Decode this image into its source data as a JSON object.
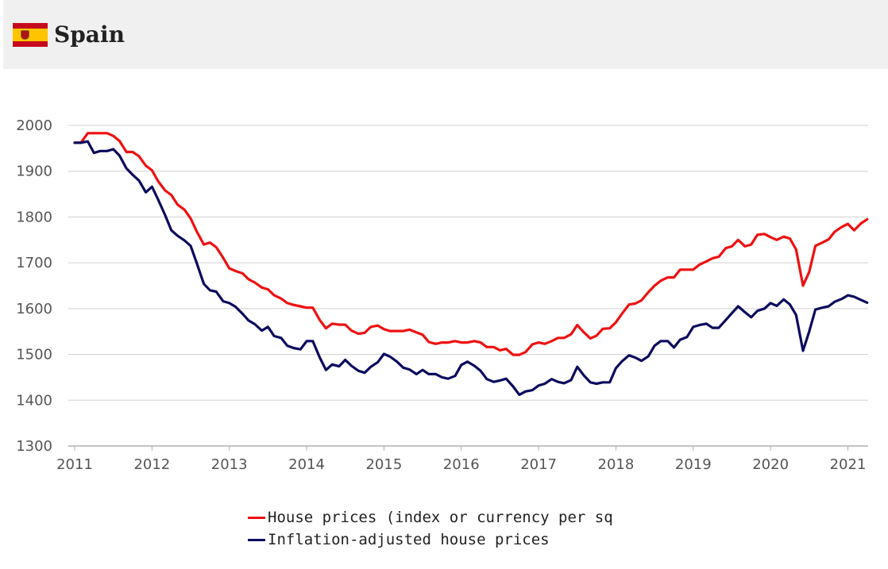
{
  "header": {
    "country": "Spain",
    "flag_icon": "spain-flag-icon"
  },
  "chart_data": {
    "type": "line",
    "xlim": [
      2011,
      2021.25
    ],
    "ylim": [
      1300,
      2000
    ],
    "y_ticks": [
      1300,
      1400,
      1500,
      1600,
      1700,
      1800,
      1900,
      2000
    ],
    "x_ticks": [
      2011,
      2012,
      2013,
      2014,
      2015,
      2016,
      2017,
      2018,
      2019,
      2020,
      2021
    ],
    "grid": "horizontal",
    "legend_position": "bottom",
    "series": [
      {
        "name": "House prices (index or currency per sq",
        "color": "#ee1111",
        "points": [
          [
            2011.0,
            1962
          ],
          [
            2011.08,
            1962
          ],
          [
            2011.17,
            1983
          ],
          [
            2011.25,
            1983
          ],
          [
            2011.33,
            1983
          ],
          [
            2011.42,
            1983
          ],
          [
            2011.5,
            1977
          ],
          [
            2011.58,
            1966
          ],
          [
            2011.67,
            1942
          ],
          [
            2011.75,
            1942
          ],
          [
            2011.83,
            1933
          ],
          [
            2011.92,
            1912
          ],
          [
            2012.0,
            1902
          ],
          [
            2012.08,
            1878
          ],
          [
            2012.17,
            1858
          ],
          [
            2012.25,
            1848
          ],
          [
            2012.33,
            1827
          ],
          [
            2012.42,
            1816
          ],
          [
            2012.5,
            1797
          ],
          [
            2012.58,
            1768
          ],
          [
            2012.67,
            1740
          ],
          [
            2012.75,
            1744
          ],
          [
            2012.83,
            1734
          ],
          [
            2012.92,
            1711
          ],
          [
            2013.0,
            1688
          ],
          [
            2013.08,
            1682
          ],
          [
            2013.17,
            1677
          ],
          [
            2013.25,
            1664
          ],
          [
            2013.33,
            1657
          ],
          [
            2013.42,
            1646
          ],
          [
            2013.5,
            1642
          ],
          [
            2013.58,
            1629
          ],
          [
            2013.67,
            1622
          ],
          [
            2013.75,
            1612
          ],
          [
            2013.83,
            1608
          ],
          [
            2013.92,
            1605
          ],
          [
            2014.0,
            1602
          ],
          [
            2014.08,
            1602
          ],
          [
            2014.17,
            1575
          ],
          [
            2014.25,
            1557
          ],
          [
            2014.33,
            1567
          ],
          [
            2014.42,
            1565
          ],
          [
            2014.5,
            1565
          ],
          [
            2014.58,
            1552
          ],
          [
            2014.67,
            1545
          ],
          [
            2014.75,
            1547
          ],
          [
            2014.83,
            1560
          ],
          [
            2014.92,
            1563
          ],
          [
            2015.0,
            1555
          ],
          [
            2015.08,
            1551
          ],
          [
            2015.17,
            1551
          ],
          [
            2015.25,
            1551
          ],
          [
            2015.33,
            1554
          ],
          [
            2015.42,
            1548
          ],
          [
            2015.5,
            1543
          ],
          [
            2015.58,
            1527
          ],
          [
            2015.67,
            1523
          ],
          [
            2015.75,
            1526
          ],
          [
            2015.83,
            1526
          ],
          [
            2015.92,
            1529
          ],
          [
            2016.0,
            1526
          ],
          [
            2016.08,
            1526
          ],
          [
            2016.17,
            1529
          ],
          [
            2016.25,
            1526
          ],
          [
            2016.33,
            1516
          ],
          [
            2016.42,
            1516
          ],
          [
            2016.5,
            1509
          ],
          [
            2016.58,
            1512
          ],
          [
            2016.67,
            1499
          ],
          [
            2016.75,
            1499
          ],
          [
            2016.83,
            1505
          ],
          [
            2016.92,
            1522
          ],
          [
            2017.0,
            1526
          ],
          [
            2017.08,
            1523
          ],
          [
            2017.17,
            1529
          ],
          [
            2017.25,
            1536
          ],
          [
            2017.33,
            1536
          ],
          [
            2017.42,
            1544
          ],
          [
            2017.5,
            1564
          ],
          [
            2017.58,
            1549
          ],
          [
            2017.67,
            1535
          ],
          [
            2017.75,
            1541
          ],
          [
            2017.83,
            1556
          ],
          [
            2017.92,
            1557
          ],
          [
            2018.0,
            1570
          ],
          [
            2018.08,
            1589
          ],
          [
            2018.17,
            1609
          ],
          [
            2018.25,
            1611
          ],
          [
            2018.33,
            1618
          ],
          [
            2018.42,
            1636
          ],
          [
            2018.5,
            1650
          ],
          [
            2018.58,
            1661
          ],
          [
            2018.67,
            1668
          ],
          [
            2018.75,
            1668
          ],
          [
            2018.83,
            1685
          ],
          [
            2018.92,
            1685
          ],
          [
            2019.0,
            1685
          ],
          [
            2019.08,
            1696
          ],
          [
            2019.17,
            1703
          ],
          [
            2019.25,
            1710
          ],
          [
            2019.33,
            1713
          ],
          [
            2019.42,
            1732
          ],
          [
            2019.5,
            1736
          ],
          [
            2019.58,
            1750
          ],
          [
            2019.67,
            1736
          ],
          [
            2019.75,
            1740
          ],
          [
            2019.83,
            1761
          ],
          [
            2019.92,
            1763
          ],
          [
            2020.0,
            1756
          ],
          [
            2020.08,
            1750
          ],
          [
            2020.17,
            1757
          ],
          [
            2020.25,
            1753
          ],
          [
            2020.33,
            1729
          ],
          [
            2020.42,
            1650
          ],
          [
            2020.5,
            1680
          ],
          [
            2020.58,
            1737
          ],
          [
            2020.67,
            1744
          ],
          [
            2020.75,
            1751
          ],
          [
            2020.83,
            1768
          ],
          [
            2020.92,
            1778
          ],
          [
            2021.0,
            1785
          ],
          [
            2021.08,
            1771
          ],
          [
            2021.17,
            1786
          ],
          [
            2021.25,
            1795
          ]
        ]
      },
      {
        "name": "Inflation-adjusted house prices",
        "color": "#0b0b5e",
        "points": [
          [
            2011.0,
            1962
          ],
          [
            2011.08,
            1962
          ],
          [
            2011.17,
            1965
          ],
          [
            2011.25,
            1940
          ],
          [
            2011.33,
            1944
          ],
          [
            2011.42,
            1944
          ],
          [
            2011.5,
            1948
          ],
          [
            2011.58,
            1934
          ],
          [
            2011.67,
            1906
          ],
          [
            2011.75,
            1892
          ],
          [
            2011.83,
            1880
          ],
          [
            2011.92,
            1854
          ],
          [
            2012.0,
            1866
          ],
          [
            2012.08,
            1838
          ],
          [
            2012.17,
            1804
          ],
          [
            2012.25,
            1771
          ],
          [
            2012.33,
            1759
          ],
          [
            2012.42,
            1749
          ],
          [
            2012.5,
            1737
          ],
          [
            2012.58,
            1699
          ],
          [
            2012.67,
            1654
          ],
          [
            2012.75,
            1640
          ],
          [
            2012.83,
            1637
          ],
          [
            2012.92,
            1616
          ],
          [
            2013.0,
            1612
          ],
          [
            2013.08,
            1604
          ],
          [
            2013.17,
            1589
          ],
          [
            2013.25,
            1574
          ],
          [
            2013.33,
            1566
          ],
          [
            2013.42,
            1552
          ],
          [
            2013.5,
            1560
          ],
          [
            2013.58,
            1540
          ],
          [
            2013.67,
            1536
          ],
          [
            2013.75,
            1519
          ],
          [
            2013.83,
            1514
          ],
          [
            2013.92,
            1511
          ],
          [
            2014.0,
            1529
          ],
          [
            2014.08,
            1529
          ],
          [
            2014.17,
            1493
          ],
          [
            2014.25,
            1466
          ],
          [
            2014.33,
            1478
          ],
          [
            2014.42,
            1474
          ],
          [
            2014.5,
            1488
          ],
          [
            2014.58,
            1475
          ],
          [
            2014.67,
            1464
          ],
          [
            2014.75,
            1460
          ],
          [
            2014.83,
            1473
          ],
          [
            2014.92,
            1483
          ],
          [
            2015.0,
            1501
          ],
          [
            2015.08,
            1495
          ],
          [
            2015.17,
            1484
          ],
          [
            2015.25,
            1471
          ],
          [
            2015.33,
            1467
          ],
          [
            2015.42,
            1457
          ],
          [
            2015.5,
            1466
          ],
          [
            2015.58,
            1457
          ],
          [
            2015.67,
            1457
          ],
          [
            2015.75,
            1450
          ],
          [
            2015.83,
            1447
          ],
          [
            2015.92,
            1453
          ],
          [
            2016.0,
            1477
          ],
          [
            2016.08,
            1484
          ],
          [
            2016.17,
            1475
          ],
          [
            2016.25,
            1464
          ],
          [
            2016.33,
            1446
          ],
          [
            2016.42,
            1440
          ],
          [
            2016.5,
            1443
          ],
          [
            2016.58,
            1447
          ],
          [
            2016.67,
            1430
          ],
          [
            2016.75,
            1412
          ],
          [
            2016.83,
            1419
          ],
          [
            2016.92,
            1422
          ],
          [
            2017.0,
            1432
          ],
          [
            2017.08,
            1436
          ],
          [
            2017.17,
            1446
          ],
          [
            2017.25,
            1440
          ],
          [
            2017.33,
            1437
          ],
          [
            2017.42,
            1444
          ],
          [
            2017.5,
            1473
          ],
          [
            2017.58,
            1455
          ],
          [
            2017.67,
            1439
          ],
          [
            2017.75,
            1436
          ],
          [
            2017.83,
            1439
          ],
          [
            2017.92,
            1439
          ],
          [
            2018.0,
            1470
          ],
          [
            2018.08,
            1485
          ],
          [
            2018.17,
            1498
          ],
          [
            2018.25,
            1493
          ],
          [
            2018.33,
            1486
          ],
          [
            2018.42,
            1496
          ],
          [
            2018.5,
            1519
          ],
          [
            2018.58,
            1529
          ],
          [
            2018.67,
            1529
          ],
          [
            2018.75,
            1515
          ],
          [
            2018.83,
            1532
          ],
          [
            2018.92,
            1538
          ],
          [
            2019.0,
            1560
          ],
          [
            2019.08,
            1564
          ],
          [
            2019.17,
            1567
          ],
          [
            2019.25,
            1558
          ],
          [
            2019.33,
            1558
          ],
          [
            2019.42,
            1575
          ],
          [
            2019.5,
            1590
          ],
          [
            2019.58,
            1605
          ],
          [
            2019.67,
            1592
          ],
          [
            2019.75,
            1581
          ],
          [
            2019.83,
            1595
          ],
          [
            2019.92,
            1600
          ],
          [
            2020.0,
            1612
          ],
          [
            2020.08,
            1606
          ],
          [
            2020.17,
            1620
          ],
          [
            2020.25,
            1609
          ],
          [
            2020.33,
            1586
          ],
          [
            2020.42,
            1508
          ],
          [
            2020.5,
            1550
          ],
          [
            2020.58,
            1598
          ],
          [
            2020.67,
            1602
          ],
          [
            2020.75,
            1605
          ],
          [
            2020.83,
            1615
          ],
          [
            2020.92,
            1621
          ],
          [
            2021.0,
            1629
          ],
          [
            2021.08,
            1626
          ],
          [
            2021.17,
            1619
          ],
          [
            2021.25,
            1613
          ]
        ]
      }
    ]
  }
}
